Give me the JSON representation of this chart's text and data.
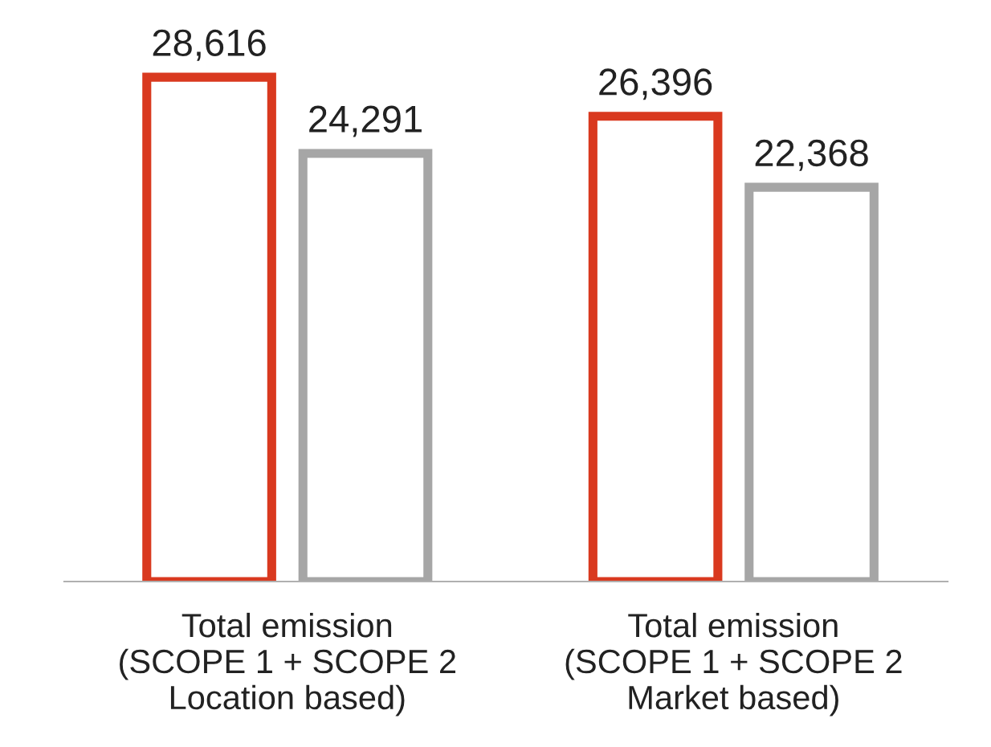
{
  "chart_data": {
    "type": "bar",
    "categories": [
      "Total emission\n(SCOPE 1 + SCOPE 2\nLocation based)",
      "Total emission\n(SCOPE 1 + SCOPE 2\nMarket based)"
    ],
    "series": [
      {
        "color": "#d9391f",
        "values": [
          28616,
          26396
        ],
        "value_labels": [
          "28,616",
          "26,396"
        ]
      },
      {
        "color": "#a6a6a6",
        "values": [
          24291,
          22368
        ],
        "value_labels": [
          "24,291",
          "22,368"
        ]
      }
    ],
    "grid": false,
    "legend": false,
    "tick_labels": "x"
  }
}
